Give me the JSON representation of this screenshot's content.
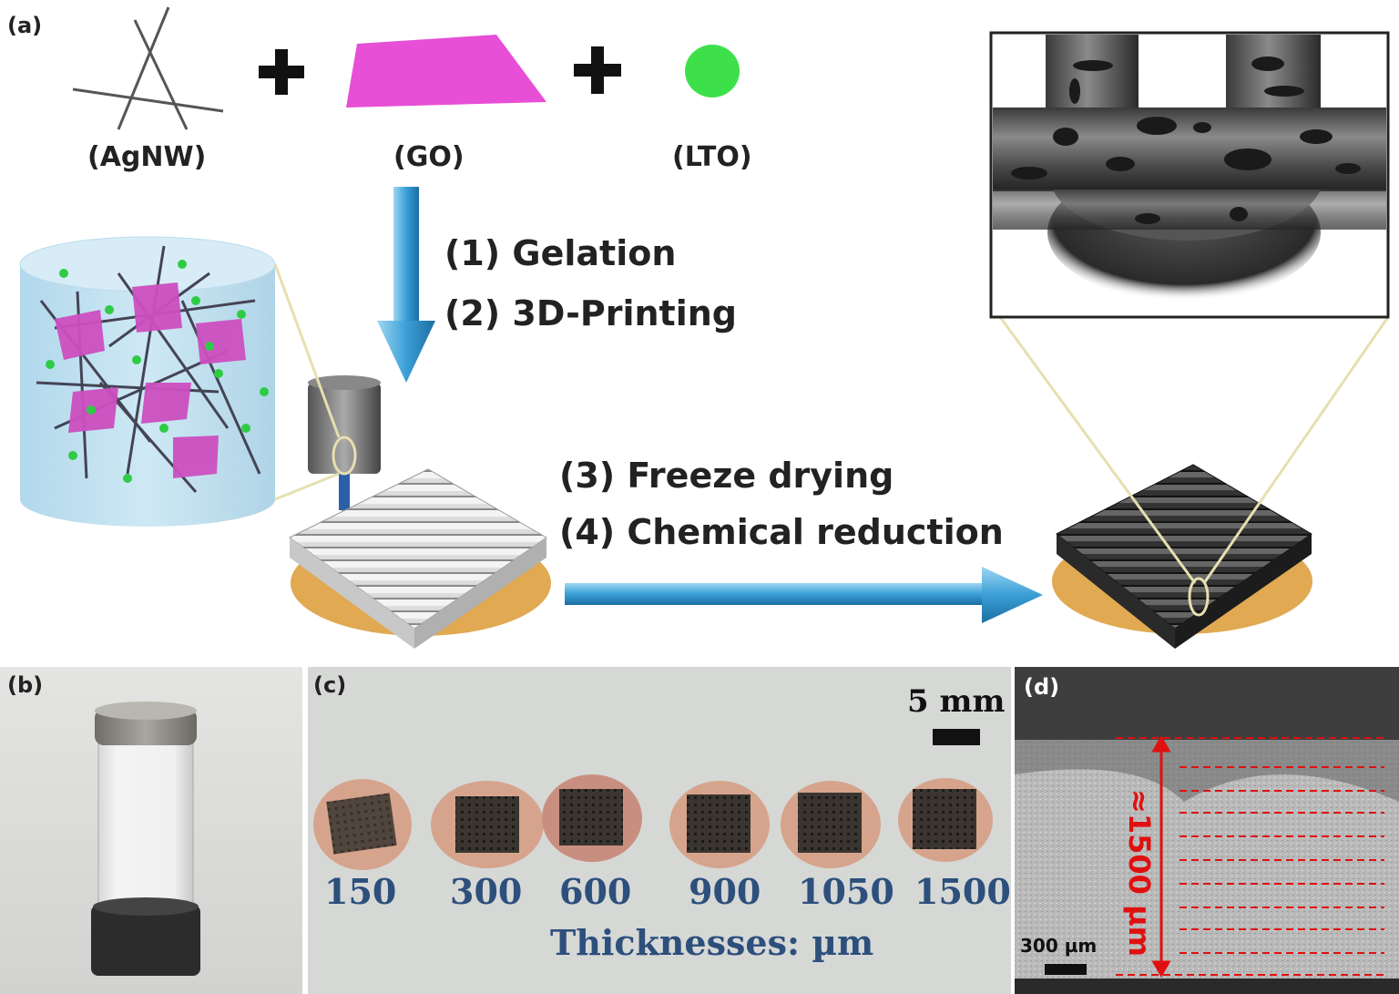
{
  "panels": {
    "a": "(a)",
    "b": "(b)",
    "c": "(c)",
    "d": "(d)"
  },
  "components": [
    {
      "label": "(AgNW)"
    },
    {
      "label": "(GO)"
    },
    {
      "label": "(LTO)"
    }
  ],
  "steps": {
    "gelation": "(1) Gelation",
    "printing": "(2) 3D-Printing",
    "freeze": "(3) Freeze drying",
    "reduction": "(4) Chemical reduction"
  },
  "panel_c": {
    "scale_bar": "5 mm",
    "thicknesses": [
      "150",
      "300",
      "600",
      "900",
      "1050",
      "1500"
    ],
    "caption": "Thicknesses: µm"
  },
  "panel_d": {
    "total_thickness": "≈1500 µm",
    "scale_bar": "300 µm"
  },
  "colors": {
    "arrow_blue": "#3a9fd6",
    "go_magenta": "#e64fd6",
    "lto_green": "#3ee04a",
    "substrate_gold": "#e0a952",
    "annotation_red": "#e01010",
    "label_navy": "#2d4f7c"
  }
}
